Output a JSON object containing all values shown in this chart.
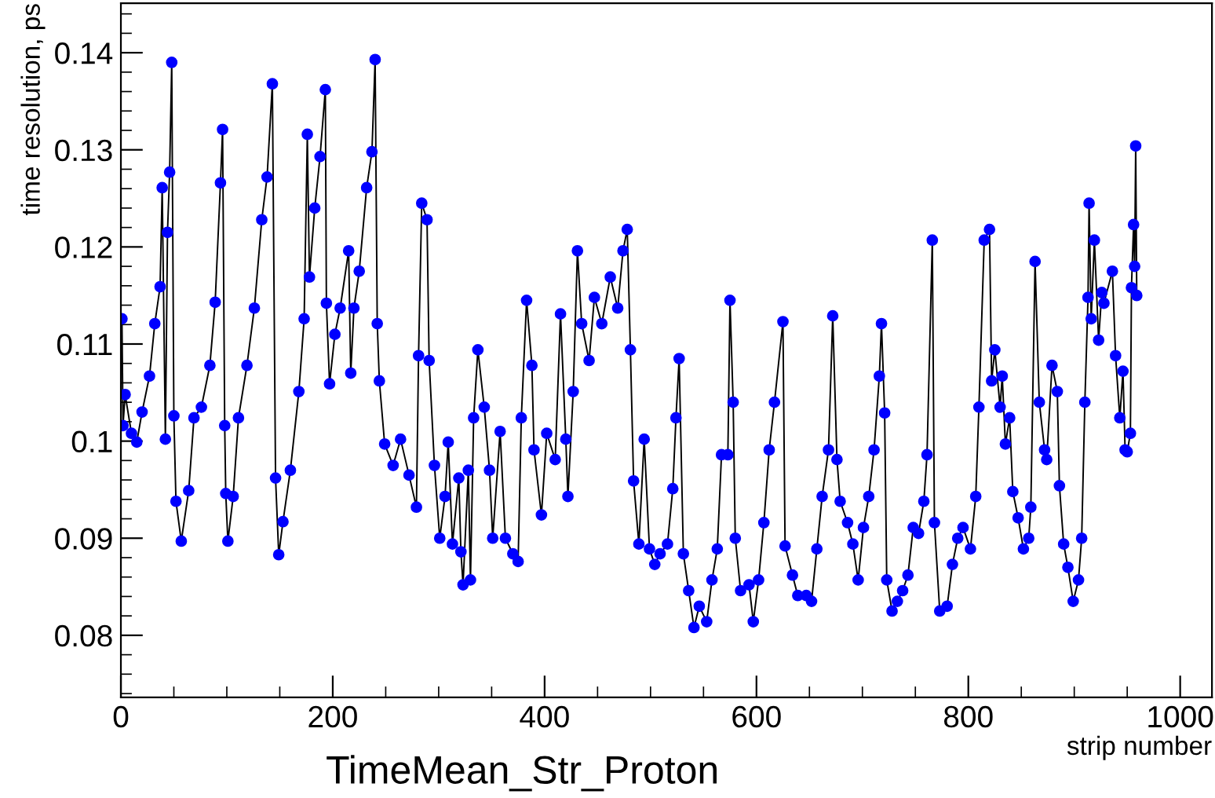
{
  "chart_data": {
    "type": "line",
    "title": "TimeMean_Str_Proton",
    "xlabel": "strip number",
    "ylabel": "time resolution, ps",
    "xlim": [
      0,
      1030
    ],
    "ylim": [
      0.0736,
      0.1451
    ],
    "xticks": [
      0,
      200,
      400,
      600,
      800,
      1000
    ],
    "yticks": [
      0.08,
      0.09,
      0.1,
      0.11,
      0.12,
      0.13,
      0.14
    ],
    "grid": false,
    "legend": false,
    "marker": "circle",
    "line_style": "solid",
    "series": [
      {
        "color": "#0000ff",
        "x": [
          1,
          2,
          4,
          10,
          15,
          20,
          27,
          32,
          37,
          39,
          42,
          44,
          46,
          48,
          50,
          52,
          57,
          64,
          69,
          76,
          84,
          89,
          94,
          96,
          98,
          99,
          101,
          106,
          111,
          119,
          126,
          133,
          138,
          143,
          146,
          149,
          153,
          160,
          168,
          173,
          176,
          178,
          183,
          188,
          193,
          194,
          197,
          202,
          207,
          215,
          217,
          220,
          225,
          232,
          237,
          240,
          242,
          244,
          249,
          257,
          264,
          272,
          279,
          281,
          284,
          289,
          291,
          296,
          301,
          306,
          309,
          313,
          319,
          321,
          323,
          328,
          330,
          333,
          337,
          343,
          348,
          351,
          358,
          363,
          370,
          375,
          378,
          383,
          388,
          390,
          397,
          402,
          410,
          415,
          420,
          422,
          427,
          431,
          435,
          442,
          447,
          454,
          462,
          469,
          474,
          478,
          481,
          484,
          489,
          494,
          499,
          504,
          509,
          516,
          521,
          524,
          527,
          531,
          536,
          541,
          546,
          553,
          558,
          563,
          567,
          573,
          575,
          578,
          580,
          585,
          593,
          597,
          602,
          607,
          612,
          617,
          625,
          627,
          634,
          639,
          647,
          652,
          657,
          662,
          668,
          672,
          676,
          679,
          686,
          691,
          696,
          701,
          706,
          711,
          716,
          718,
          721,
          723,
          728,
          733,
          738,
          743,
          748,
          753,
          758,
          761,
          766,
          768,
          773,
          780,
          785,
          790,
          795,
          802,
          807,
          810,
          815,
          820,
          822,
          825,
          830,
          832,
          835,
          839,
          842,
          847,
          852,
          857,
          859,
          863,
          867,
          872,
          874,
          879,
          884,
          886,
          890,
          894,
          899,
          904,
          907,
          910,
          913,
          914,
          916,
          919,
          923,
          926,
          928,
          936,
          939,
          943,
          946,
          948,
          950,
          953,
          954,
          956,
          957,
          958,
          959
        ],
        "values": [
          0.1126,
          0.1016,
          0.1048,
          0.1008,
          0.0999,
          0.103,
          0.1067,
          0.1121,
          0.1159,
          0.1261,
          0.1002,
          0.1215,
          0.1277,
          0.139,
          0.1026,
          0.0938,
          0.0897,
          0.0949,
          0.1024,
          0.1035,
          0.1078,
          0.1143,
          0.1266,
          0.1321,
          0.1016,
          0.0946,
          0.0897,
          0.0943,
          0.1024,
          0.1078,
          0.1137,
          0.1228,
          0.1272,
          0.1368,
          0.0962,
          0.0883,
          0.0917,
          0.097,
          0.1051,
          0.1126,
          0.1316,
          0.1169,
          0.124,
          0.1293,
          0.1362,
          0.1142,
          0.1059,
          0.111,
          0.1137,
          0.1196,
          0.107,
          0.1137,
          0.1175,
          0.1261,
          0.1298,
          0.1393,
          0.1121,
          0.1062,
          0.0997,
          0.0975,
          0.1002,
          0.0965,
          0.0932,
          0.1088,
          0.1245,
          0.1228,
          0.1083,
          0.0975,
          0.09,
          0.0943,
          0.0999,
          0.0894,
          0.0962,
          0.0886,
          0.0852,
          0.097,
          0.0857,
          0.1024,
          0.1094,
          0.1035,
          0.097,
          0.09,
          0.101,
          0.09,
          0.0884,
          0.0876,
          0.1024,
          0.1145,
          0.1078,
          0.0991,
          0.0924,
          0.1008,
          0.0981,
          0.1131,
          0.1002,
          0.0943,
          0.1051,
          0.1196,
          0.1121,
          0.1083,
          0.1148,
          0.1121,
          0.1169,
          0.1137,
          0.1196,
          0.1218,
          0.1094,
          0.0959,
          0.0894,
          0.1002,
          0.0889,
          0.0873,
          0.0884,
          0.0894,
          0.0951,
          0.1024,
          0.1085,
          0.0884,
          0.0846,
          0.0808,
          0.083,
          0.0814,
          0.0857,
          0.0889,
          0.0986,
          0.0986,
          0.1145,
          0.104,
          0.09,
          0.0846,
          0.0852,
          0.0814,
          0.0857,
          0.0916,
          0.0991,
          0.104,
          0.1123,
          0.0892,
          0.0862,
          0.0841,
          0.0841,
          0.0835,
          0.0889,
          0.0943,
          0.0991,
          0.1129,
          0.0981,
          0.0938,
          0.0916,
          0.0894,
          0.0857,
          0.0911,
          0.0943,
          0.0991,
          0.1067,
          0.1121,
          0.1029,
          0.0857,
          0.0825,
          0.0835,
          0.0846,
          0.0862,
          0.0911,
          0.0905,
          0.0938,
          0.0986,
          0.1207,
          0.0916,
          0.0825,
          0.083,
          0.0873,
          0.09,
          0.0911,
          0.0889,
          0.0943,
          0.1035,
          0.1207,
          0.1218,
          0.1062,
          0.1094,
          0.1035,
          0.1067,
          0.0997,
          0.1024,
          0.0948,
          0.0921,
          0.0889,
          0.09,
          0.0932,
          0.1185,
          0.104,
          0.0991,
          0.0981,
          0.1078,
          0.1051,
          0.0954,
          0.0894,
          0.087,
          0.0835,
          0.0857,
          0.09,
          0.104,
          0.1148,
          0.1245,
          0.1126,
          0.1207,
          0.1104,
          0.1153,
          0.1142,
          0.1175,
          0.1088,
          0.1024,
          0.1072,
          0.0991,
          0.0989,
          0.1008,
          0.1158,
          0.1223,
          0.118,
          0.1304,
          0.115
        ]
      }
    ]
  }
}
